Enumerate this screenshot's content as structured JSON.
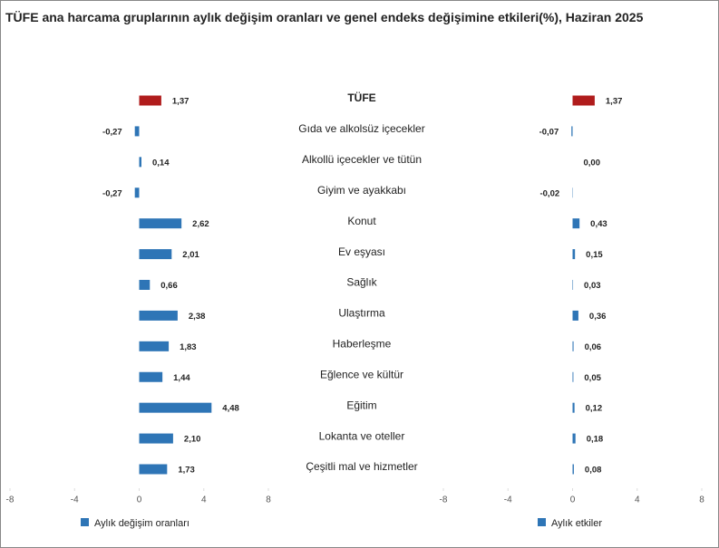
{
  "chart_data": [
    {
      "type": "bar",
      "orientation": "horizontal",
      "title": "TÜFE ana harcama gruplarının aylık değişim oranları ve genel endeks değişimine etkileri(%), Haziran 2025",
      "categories": [
        "TÜFE",
        "Gıda ve alkolsüz içecekler",
        "Alkollü içecekler ve tütün",
        "Giyim ve ayakkabı",
        "Konut",
        "Ev eşyası",
        "Sağlık",
        "Ulaştırma",
        "Haberleşme",
        "Eğlence ve kültür",
        "Eğitim",
        "Lokanta ve oteller",
        "Çeşitli mal ve hizmetler"
      ],
      "series": [
        {
          "name": "Aylık değişim oranları",
          "color": "#2e75b6",
          "colors": [
            "#b01c1c",
            "#2e75b6",
            "#2e75b6",
            "#2e75b6",
            "#2e75b6",
            "#2e75b6",
            "#2e75b6",
            "#2e75b6",
            "#2e75b6",
            "#2e75b6",
            "#2e75b6",
            "#2e75b6",
            "#2e75b6"
          ],
          "values": [
            1.37,
            -0.27,
            0.14,
            -0.27,
            2.62,
            2.01,
            0.66,
            2.38,
            1.83,
            1.44,
            4.48,
            2.1,
            1.73
          ],
          "value_labels": [
            "1,37",
            "-0,27",
            "0,14",
            "-0,27",
            "2,62",
            "2,01",
            "0,66",
            "2,38",
            "1,83",
            "1,44",
            "4,48",
            "2,10",
            "1,73"
          ]
        }
      ],
      "xlim": [
        -8,
        8
      ],
      "xticks": [
        -8,
        -4,
        0,
        4,
        8
      ],
      "legend": "bottom-left"
    },
    {
      "type": "bar",
      "orientation": "horizontal",
      "series": [
        {
          "name": "Aylık etkiler",
          "color": "#2e75b6",
          "colors": [
            "#b01c1c",
            "#2e75b6",
            "#2e75b6",
            "#2e75b6",
            "#2e75b6",
            "#2e75b6",
            "#2e75b6",
            "#2e75b6",
            "#2e75b6",
            "#2e75b6",
            "#2e75b6",
            "#2e75b6",
            "#2e75b6"
          ],
          "values": [
            1.37,
            -0.07,
            0.0,
            -0.02,
            0.43,
            0.15,
            0.03,
            0.36,
            0.06,
            0.05,
            0.12,
            0.18,
            0.08
          ],
          "value_labels": [
            "1,37",
            "-0,07",
            "0,00",
            "-0,02",
            "0,43",
            "0,15",
            "0,03",
            "0,36",
            "0,06",
            "0,05",
            "0,12",
            "0,18",
            "0,08"
          ]
        }
      ],
      "xlim": [
        -8,
        8
      ],
      "xticks": [
        -8,
        -4,
        0,
        4,
        8
      ],
      "legend": "bottom-left"
    }
  ]
}
